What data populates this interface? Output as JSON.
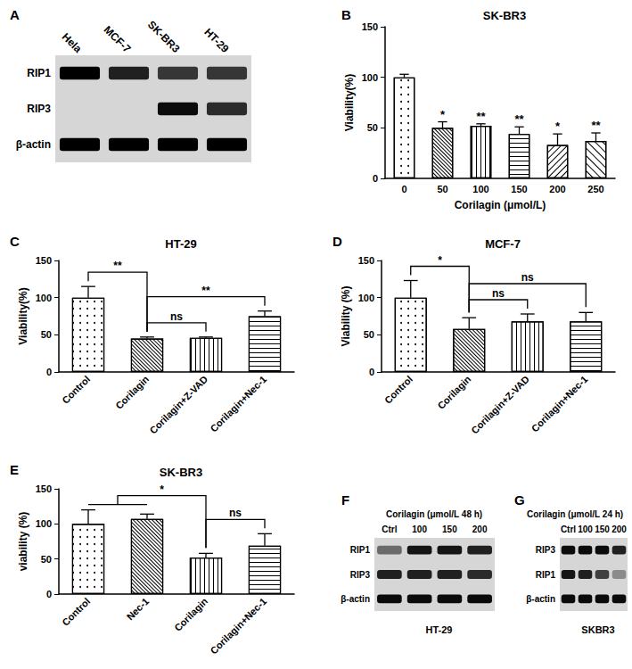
{
  "chart_data": [
    {
      "panel": "A",
      "type": "blot",
      "lanes": [
        "Hela",
        "MCF-7",
        "SK-BR3",
        "HT-29"
      ],
      "rows": [
        {
          "name": "RIP1",
          "values": [
            1,
            0.85,
            0.75,
            0.75
          ]
        },
        {
          "name": "RIP3",
          "values": [
            0,
            0,
            0.95,
            0.8
          ]
        },
        {
          "name": "β-actin",
          "values": [
            1,
            1,
            1,
            1
          ]
        }
      ]
    },
    {
      "panel": "B",
      "type": "bar",
      "title": "SK-BR3",
      "x_label": "Corilagin (μmol/L)",
      "y_label": "Viability(%)",
      "categories": [
        "0",
        "50",
        "100",
        "150",
        "200",
        "250"
      ],
      "values": [
        100,
        50,
        52,
        44,
        33,
        37
      ],
      "errors": [
        3,
        6,
        2,
        7,
        11,
        8
      ],
      "color": "#000000",
      "ylim": [
        0,
        150
      ],
      "yticks": [
        0,
        50,
        100,
        150
      ],
      "annotations": [
        {
          "category": "50",
          "text": "*"
        },
        {
          "category": "100",
          "text": "**"
        },
        {
          "category": "150",
          "text": "**"
        },
        {
          "category": "200",
          "text": "*"
        },
        {
          "category": "250",
          "text": "**"
        }
      ]
    },
    {
      "panel": "C",
      "type": "bar",
      "title": "HT-29",
      "y_label": "Viability(%)",
      "categories": [
        "Control",
        "Corilagin",
        "Corilagin+Z-VAD",
        "Corilagin+Nec-1"
      ],
      "values": [
        100,
        45,
        46,
        75
      ],
      "errors": [
        15,
        2,
        1,
        7
      ],
      "color": "#000000",
      "ylim": [
        0,
        150
      ],
      "yticks": [
        0,
        50,
        100,
        150
      ],
      "brackets": [
        {
          "from": "Control",
          "to": "Corilagin",
          "text": "**"
        },
        {
          "from": "Corilagin",
          "to": "Corilagin+Z-VAD",
          "text": "ns"
        },
        {
          "from": "Corilagin",
          "to": "Corilagin+Nec-1",
          "text": "**"
        }
      ]
    },
    {
      "panel": "D",
      "type": "bar",
      "title": "MCF-7",
      "y_label": "Viability (%)",
      "categories": [
        "Control",
        "Corilagin",
        "Corilagin+Z-VAD",
        "Corilagin+Nec-1"
      ],
      "values": [
        100,
        58,
        68,
        68
      ],
      "errors": [
        23,
        15,
        10,
        12
      ],
      "color": "#000000",
      "ylim": [
        0,
        150
      ],
      "yticks": [
        0,
        50,
        100,
        150
      ],
      "brackets": [
        {
          "from": "Control",
          "to": "Corilagin",
          "text": "*"
        },
        {
          "from": "Corilagin",
          "to": "Corilagin+Z-VAD",
          "text": "ns"
        },
        {
          "from": "Corilagin",
          "to": "Corilagin+Nec-1",
          "text": "ns"
        }
      ]
    },
    {
      "panel": "E",
      "type": "bar",
      "title": "SK-BR3",
      "y_label": "viability (%)",
      "categories": [
        "Control",
        "Nec-1",
        "Corilagin",
        "Corilagin+Nec-1"
      ],
      "values": [
        100,
        107,
        52,
        69
      ],
      "errors": [
        20,
        7,
        6,
        17
      ],
      "color": "#000000",
      "ylim": [
        0,
        150
      ],
      "yticks": [
        0,
        50,
        100,
        150
      ],
      "brackets": [
        {
          "from": [
            "Control",
            "Nec-1"
          ],
          "to": "Corilagin",
          "text": "*"
        },
        {
          "from": "Corilagin",
          "to": "Corilagin+Nec-1",
          "text": "ns"
        }
      ]
    },
    {
      "panel": "F",
      "type": "blot",
      "title": "Corilagin (μmol/L 48 h)",
      "caption": "HT-29",
      "lanes": [
        "Ctrl",
        "100",
        "150",
        "200"
      ],
      "rows": [
        {
          "name": "RIP1",
          "values": [
            0.5,
            0.9,
            0.9,
            0.85
          ]
        },
        {
          "name": "RIP3",
          "values": [
            0.85,
            0.85,
            0.85,
            0.8
          ]
        },
        {
          "name": "β-actin",
          "values": [
            0.95,
            0.95,
            0.95,
            0.95
          ]
        }
      ]
    },
    {
      "panel": "G",
      "type": "blot",
      "title": "Corilagin (μmol/L 24 h)",
      "caption": "SKBR3",
      "lanes": [
        "Ctrl",
        "100",
        "150",
        "200"
      ],
      "rows": [
        {
          "name": "RIP3",
          "values": [
            0.95,
            0.95,
            0.95,
            0.85
          ]
        },
        {
          "name": "RIP1",
          "values": [
            0.9,
            0.85,
            0.7,
            0.35
          ]
        },
        {
          "name": "β-actin",
          "values": [
            0.95,
            0.95,
            0.95,
            0.95
          ]
        }
      ]
    }
  ]
}
